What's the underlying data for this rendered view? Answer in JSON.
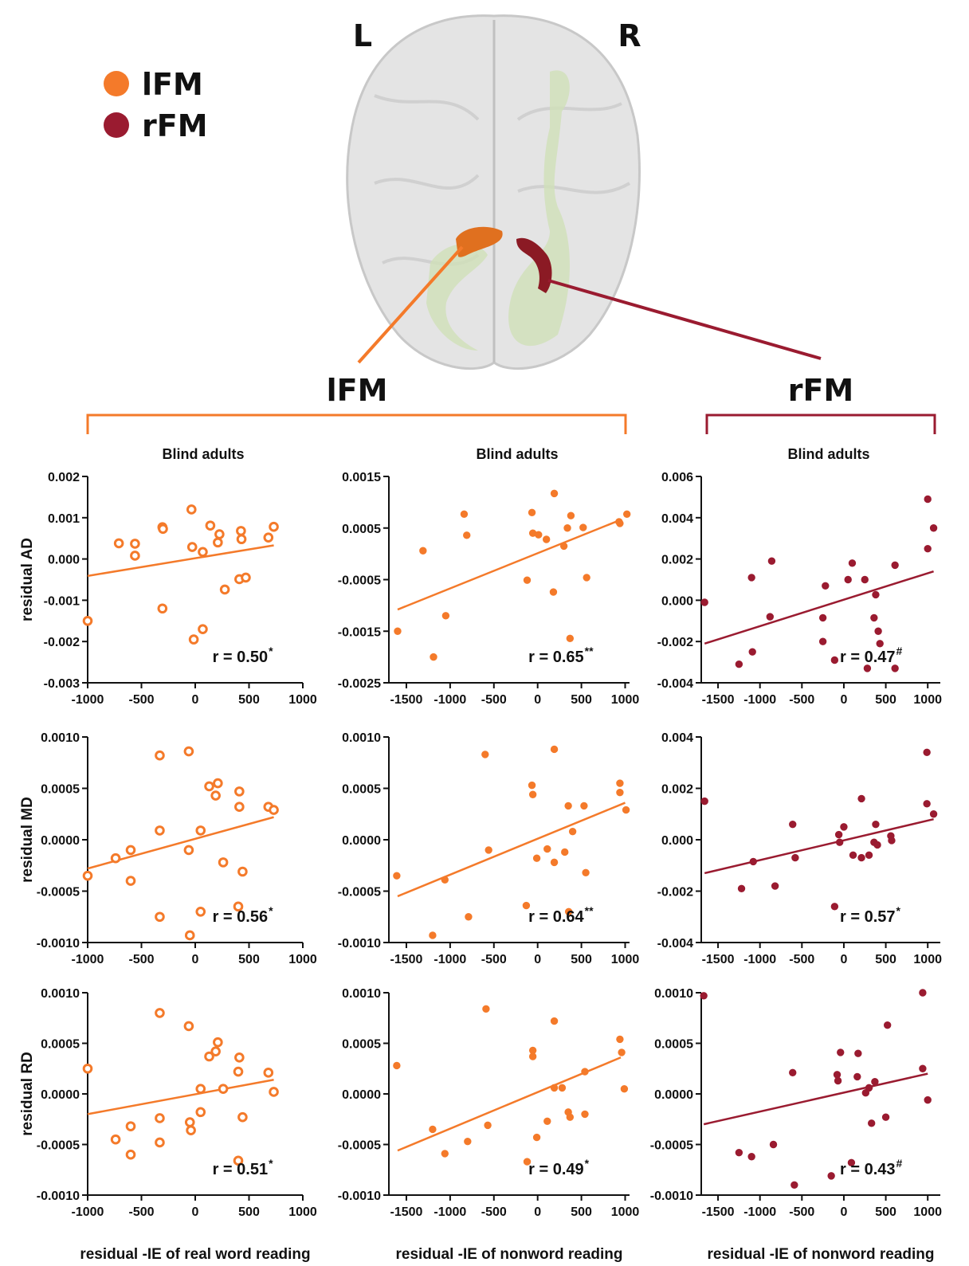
{
  "figure": {
    "legend": [
      "lFM",
      "rFM"
    ],
    "hemisphere_labels": [
      "L",
      "R"
    ],
    "group_labels": [
      "lFM",
      "rFM"
    ]
  },
  "chart_data": [
    {
      "type": "scatter",
      "title": "Blind adults",
      "y_label": "residual AD",
      "annotation": "r = 0.50",
      "annotation_sup": "*",
      "color": "#f47a2a",
      "marker": "open",
      "x": [
        -1000,
        -710,
        -560,
        -560,
        -305,
        -300,
        -305,
        -35,
        -28,
        -14,
        70,
        70,
        140,
        225,
        210,
        275,
        425,
        430,
        410,
        470,
        680,
        730
      ],
      "values": [
        -0.0015,
        0.00038,
        0.00037,
        8e-05,
        0.00077,
        0.00073,
        -0.0012,
        0.0012,
        0.00029,
        -0.00195,
        0.00017,
        -0.0017,
        0.00081,
        0.0006,
        0.0004,
        -0.00074,
        0.00068,
        0.00048,
        -0.00049,
        -0.00045,
        0.00052,
        0.00078
      ],
      "trendline": {
        "x": [
          -1000,
          730
        ],
        "y": [
          -0.00041,
          0.00033
        ]
      },
      "xlim": [
        -1000,
        1000
      ],
      "xticks": [
        -1000,
        -500,
        0,
        500,
        1000
      ],
      "ylim": [
        -0.003,
        0.002
      ],
      "yticks": [
        0.002,
        0.001,
        {
          "value": 0,
          "label": "0.000"
        },
        -0.001,
        -0.002,
        -0.003
      ]
    },
    {
      "type": "scatter",
      "title": "Blind adults",
      "annotation": "r = 0.65",
      "annotation_sup": "**",
      "color": "#f47a2a",
      "marker": "filled",
      "x": [
        -1600,
        -1190,
        -1310,
        -1050,
        -840,
        -810,
        -120,
        -65,
        -55,
        10,
        100,
        190,
        180,
        300,
        340,
        370,
        380,
        520,
        560,
        930,
        940,
        1020
      ],
      "values": [
        -0.0015,
        -0.002,
        6e-05,
        -0.0012,
        0.00077,
        0.00036,
        -0.00051,
        0.0008,
        0.0004,
        0.00037,
        0.00028,
        0.00117,
        -0.00074,
        0.00015,
        0.0005,
        -0.00164,
        0.00074,
        0.00051,
        -0.00046,
        0.00062,
        0.00059,
        0.00077
      ],
      "trendline": {
        "x": [
          -1600,
          950
        ],
        "y": [
          -0.00108,
          0.00066
        ]
      },
      "xlim": [
        -1700,
        1050
      ],
      "xticks": [
        -1500,
        -1000,
        -500,
        0,
        500,
        1000
      ],
      "ylim": [
        -0.0025,
        0.0015
      ],
      "yticks": [
        0.0015,
        0.0005,
        -0.0005,
        -0.0015,
        -0.0025
      ]
    },
    {
      "type": "scatter",
      "title": "Blind adults",
      "annotation": "r = 0.47",
      "annotation_sup": "#",
      "color": "#9a1b30",
      "marker": "filled",
      "x": [
        -1660,
        -1250,
        -1100,
        -1090,
        -860,
        -880,
        -250,
        -250,
        -220,
        -110,
        50,
        100,
        250,
        280,
        360,
        380,
        410,
        430,
        610,
        610,
        1000,
        1000,
        1070
      ],
      "values": [
        -0.0001,
        -0.0031,
        0.0011,
        -0.0025,
        0.0019,
        -0.0008,
        -0.00085,
        -0.002,
        0.0007,
        -0.0029,
        0.001,
        0.0018,
        0.001,
        -0.0033,
        -0.00085,
        0.00027,
        -0.0015,
        -0.0021,
        0.0017,
        -0.0033,
        0.0049,
        0.0025,
        0.0035
      ],
      "trendline": {
        "x": [
          -1660,
          1070
        ],
        "y": [
          -0.0021,
          0.0014
        ]
      },
      "xlim": [
        -1700,
        1150
      ],
      "xticks": [
        -1500,
        -1000,
        -500,
        0,
        500,
        1000
      ],
      "ylim": [
        -0.004,
        0.006
      ],
      "yticks": [
        0.006,
        0.004,
        0.002,
        {
          "value": 0,
          "label": "0.000"
        },
        -0.002,
        -0.004
      ]
    },
    {
      "type": "scatter",
      "y_label": "residual MD",
      "annotation": "r = 0.56",
      "annotation_sup": "*",
      "color": "#f47a2a",
      "marker": "open",
      "x": [
        -1000,
        -740,
        -600,
        -600,
        -330,
        -330,
        -330,
        -60,
        -60,
        -50,
        50,
        50,
        130,
        210,
        190,
        260,
        410,
        410,
        400,
        440,
        680,
        730
      ],
      "values": [
        -0.00035,
        -0.00018,
        -0.0001,
        -0.0004,
        0.00082,
        9e-05,
        -0.00075,
        0.00086,
        -0.0001,
        -0.00093,
        9e-05,
        -0.0007,
        0.00052,
        0.00055,
        0.00043,
        -0.00022,
        0.00047,
        0.00032,
        -0.00065,
        -0.00031,
        0.00032,
        0.00029
      ],
      "trendline": {
        "x": [
          -1000,
          730
        ],
        "y": [
          -0.00028,
          0.00022
        ]
      },
      "xlim": [
        -1000,
        1000
      ],
      "xticks": [
        -1000,
        -500,
        0,
        500,
        1000
      ],
      "ylim": [
        -0.001,
        0.001
      ],
      "yticks": [
        {
          "value": 0.001,
          "label": "0.0010"
        },
        0.0005,
        {
          "value": 0,
          "label": "0.0000"
        },
        -0.0005,
        {
          "value": -0.001,
          "label": "-0.0010"
        }
      ]
    },
    {
      "type": "scatter",
      "annotation": "r = 0.64",
      "annotation_sup": "**",
      "color": "#f47a2a",
      "marker": "filled",
      "x": [
        -1610,
        -1200,
        -1060,
        -790,
        -600,
        -560,
        -130,
        -65,
        -55,
        -10,
        110,
        190,
        190,
        310,
        350,
        400,
        355,
        530,
        550,
        940,
        940,
        1010
      ],
      "values": [
        -0.00035,
        -0.00093,
        -0.00039,
        -0.00075,
        0.00083,
        -0.0001,
        -0.00064,
        0.00053,
        0.00044,
        -0.00018,
        -9e-05,
        -0.00022,
        0.00088,
        -0.00012,
        0.00033,
        8e-05,
        -0.0007,
        0.00033,
        -0.00032,
        0.00055,
        0.00046,
        0.00029
      ],
      "trendline": {
        "x": [
          -1600,
          1000
        ],
        "y": [
          -0.00055,
          0.00036
        ]
      },
      "xlim": [
        -1700,
        1050
      ],
      "xticks": [
        -1500,
        -1000,
        -500,
        0,
        500,
        1000
      ],
      "ylim": [
        -0.001,
        0.001
      ],
      "yticks": [
        {
          "value": 0.001,
          "label": "0.0010"
        },
        0.0005,
        {
          "value": 0,
          "label": "0.0000"
        },
        -0.0005,
        {
          "value": -0.001,
          "label": "-0.0010"
        }
      ]
    },
    {
      "type": "scatter",
      "annotation": "r = 0.57",
      "annotation_sup": "*",
      "color": "#9a1b30",
      "marker": "filled",
      "x": [
        -1660,
        -1220,
        -1080,
        -820,
        -610,
        -580,
        -110,
        -60,
        -50,
        0,
        110,
        210,
        210,
        300,
        360,
        380,
        400,
        560,
        570,
        990,
        990,
        1070
      ],
      "values": [
        0.0015,
        -0.0019,
        -0.00085,
        -0.0018,
        0.0006,
        -0.0007,
        -0.0026,
        0.0002,
        -0.0001,
        0.0005,
        -0.0006,
        -0.0007,
        0.0016,
        -0.0006,
        -0.0001,
        0.0006,
        -0.0002,
        0.00015,
        -3e-05,
        0.0034,
        0.0014,
        0.001
      ],
      "trendline": {
        "x": [
          -1660,
          1070
        ],
        "y": [
          -0.0013,
          0.0008
        ]
      },
      "xlim": [
        -1700,
        1150
      ],
      "xticks": [
        -1500,
        -1000,
        -500,
        0,
        500,
        1000
      ],
      "ylim": [
        -0.004,
        0.004
      ],
      "yticks": [
        0.004,
        0.002,
        {
          "value": 0,
          "label": "0.000"
        },
        -0.002,
        -0.004
      ]
    },
    {
      "type": "scatter",
      "y_label": "residual RD",
      "x_label": "residual -IE of real word reading",
      "annotation": "r = 0.51",
      "annotation_sup": "*",
      "color": "#f47a2a",
      "marker": "open",
      "x": [
        -1000,
        -740,
        -600,
        -600,
        -330,
        -330,
        -330,
        -60,
        -50,
        -40,
        50,
        50,
        130,
        190,
        210,
        260,
        410,
        400,
        400,
        440,
        680,
        730
      ],
      "values": [
        0.00025,
        -0.00045,
        -0.00032,
        -0.0006,
        0.0008,
        -0.00024,
        -0.00048,
        0.00067,
        -0.00028,
        -0.00036,
        5e-05,
        -0.00018,
        0.00037,
        0.00042,
        0.00051,
        5e-05,
        0.00036,
        0.00022,
        -0.00066,
        -0.00023,
        0.00021,
        2e-05
      ],
      "trendline": {
        "x": [
          -1000,
          730
        ],
        "y": [
          -0.0002,
          0.00014
        ]
      },
      "xlim": [
        -1000,
        1000
      ],
      "xticks": [
        -1000,
        -500,
        0,
        500,
        1000
      ],
      "ylim": [
        -0.001,
        0.001
      ],
      "yticks": [
        {
          "value": 0.001,
          "label": "0.0010"
        },
        0.0005,
        {
          "value": 0,
          "label": "0.0000"
        },
        -0.0005,
        {
          "value": -0.001,
          "label": "-0.0010"
        }
      ]
    },
    {
      "type": "scatter",
      "x_label": "residual -IE of nonword reading",
      "annotation": "r = 0.49",
      "annotation_sup": "*",
      "color": "#f47a2a",
      "marker": "filled",
      "x": [
        -1610,
        -1200,
        -1060,
        -800,
        -590,
        -570,
        -120,
        -55,
        -55,
        -10,
        110,
        190,
        190,
        280,
        350,
        370,
        540,
        540,
        940,
        960,
        990
      ],
      "values": [
        0.00028,
        -0.00035,
        -0.00059,
        -0.00047,
        0.00084,
        -0.00031,
        -0.00067,
        0.00043,
        0.00037,
        -0.00043,
        -0.00027,
        0.00072,
        6e-05,
        6e-05,
        -0.00018,
        -0.00023,
        -0.0002,
        0.00022,
        0.00054,
        0.00041,
        5e-05
      ],
      "trendline": {
        "x": [
          -1600,
          950
        ],
        "y": [
          -0.00056,
          0.00036
        ]
      },
      "xlim": [
        -1700,
        1050
      ],
      "xticks": [
        -1500,
        -1000,
        -500,
        0,
        500,
        1000
      ],
      "ylim": [
        -0.001,
        0.001
      ],
      "yticks": [
        {
          "value": 0.001,
          "label": "0.0010"
        },
        0.0005,
        {
          "value": 0,
          "label": "0.0000"
        },
        -0.0005,
        {
          "value": -0.001,
          "label": "-0.0010"
        }
      ]
    },
    {
      "type": "scatter",
      "x_label": "residual -IE of nonword reading",
      "annotation": "r = 0.43",
      "annotation_sup": "#",
      "color": "#9a1b30",
      "marker": "filled",
      "x": [
        -1670,
        -1250,
        -1100,
        -840,
        -610,
        -590,
        -150,
        -80,
        -70,
        -40,
        90,
        160,
        170,
        260,
        300,
        330,
        370,
        500,
        520,
        940,
        940,
        1000
      ],
      "values": [
        0.00097,
        -0.00058,
        -0.00062,
        -0.0005,
        0.00021,
        -0.0009,
        -0.00081,
        0.00019,
        0.00013,
        0.00041,
        -0.00068,
        0.00017,
        0.0004,
        1e-05,
        6e-05,
        -0.00029,
        0.00012,
        -0.00023,
        0.00068,
        0.001,
        0.00025,
        -6e-05
      ],
      "trendline": {
        "x": [
          -1670,
          1000
        ],
        "y": [
          -0.0003,
          0.0002
        ]
      },
      "xlim": [
        -1700,
        1150
      ],
      "xticks": [
        -1500,
        -1000,
        -500,
        0,
        500,
        1000
      ],
      "ylim": [
        -0.001,
        0.001
      ],
      "yticks": [
        {
          "value": 0.001,
          "label": "0.0010"
        },
        0.0005,
        {
          "value": 0,
          "label": "0.0000"
        },
        -0.0005,
        {
          "value": -0.001,
          "label": "-0.0010"
        }
      ]
    }
  ]
}
